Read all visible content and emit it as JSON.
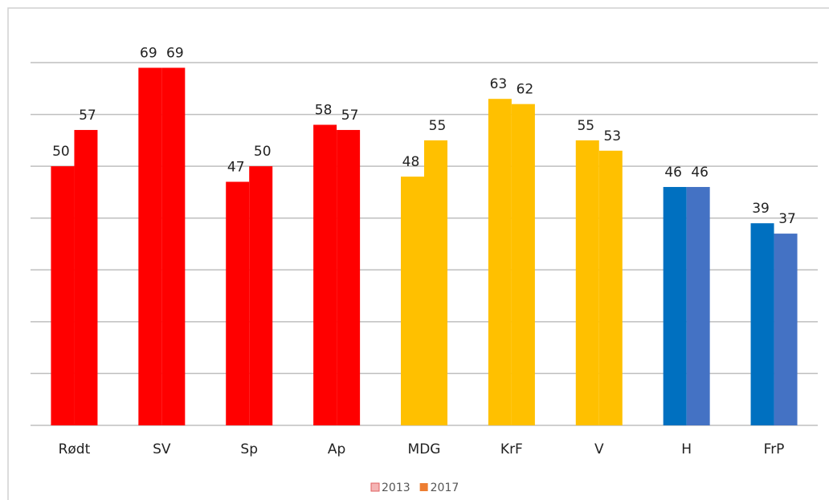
{
  "chart_data": {
    "type": "bar",
    "categories": [
      "Rødt",
      "SV",
      "Sp",
      "Ap",
      "MDG",
      "KrF",
      "V",
      "H",
      "FrP"
    ],
    "series": [
      {
        "name": "2013",
        "color": "#f4b4b4",
        "colors": [
          "#ff0000",
          "#ff0000",
          "#ff0000",
          "#ff0000",
          "#ffc000",
          "#ffc000",
          "#ffc000",
          "#0070c0",
          "#0070c0"
        ],
        "values": [
          50,
          69,
          47,
          58,
          48,
          63,
          55,
          46,
          39
        ]
      },
      {
        "name": "2017",
        "color": "#ed7d31",
        "colors": [
          "#ff0000",
          "#ff0000",
          "#ff0000",
          "#ff0000",
          "#ffc000",
          "#ffc000",
          "#ffc000",
          "#4472c4",
          "#4472c4"
        ],
        "values": [
          57,
          69,
          50,
          57,
          55,
          62,
          53,
          46,
          37
        ]
      }
    ],
    "ylim": [
      0,
      70
    ],
    "yticks": [
      0,
      10,
      20,
      30,
      40,
      50,
      60,
      70
    ],
    "grid": true
  }
}
